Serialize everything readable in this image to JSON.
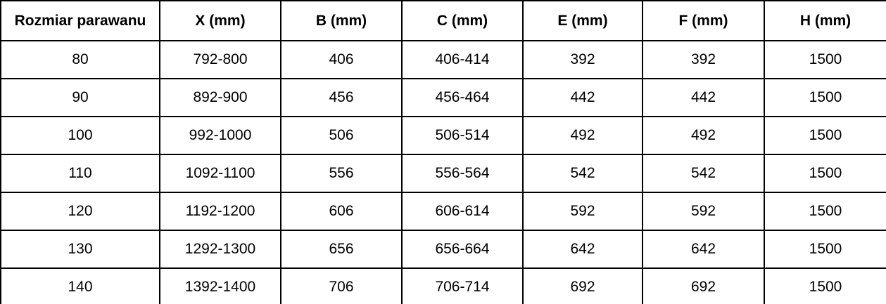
{
  "table": {
    "name": "shower-screen-dimensions-table",
    "columns": [
      "Rozmiar parawanu",
      "X (mm)",
      "B (mm)",
      "C (mm)",
      "E (mm)",
      "F (mm)",
      "H (mm)"
    ],
    "rows": [
      [
        "80",
        "792-800",
        "406",
        "406-414",
        "392",
        "392",
        "1500"
      ],
      [
        "90",
        "892-900",
        "456",
        "456-464",
        "442",
        "442",
        "1500"
      ],
      [
        "100",
        "992-1000",
        "506",
        "506-514",
        "492",
        "492",
        "1500"
      ],
      [
        "110",
        "1092-1100",
        "556",
        "556-564",
        "542",
        "542",
        "1500"
      ],
      [
        "120",
        "1192-1200",
        "606",
        "606-614",
        "592",
        "592",
        "1500"
      ],
      [
        "130",
        "1292-1300",
        "656",
        "656-664",
        "642",
        "642",
        "1500"
      ],
      [
        "140",
        "1392-1400",
        "706",
        "706-714",
        "692",
        "692",
        "1500"
      ]
    ],
    "colors": {
      "text": "#000000",
      "border": "#000000",
      "background": "#ffffff"
    }
  }
}
